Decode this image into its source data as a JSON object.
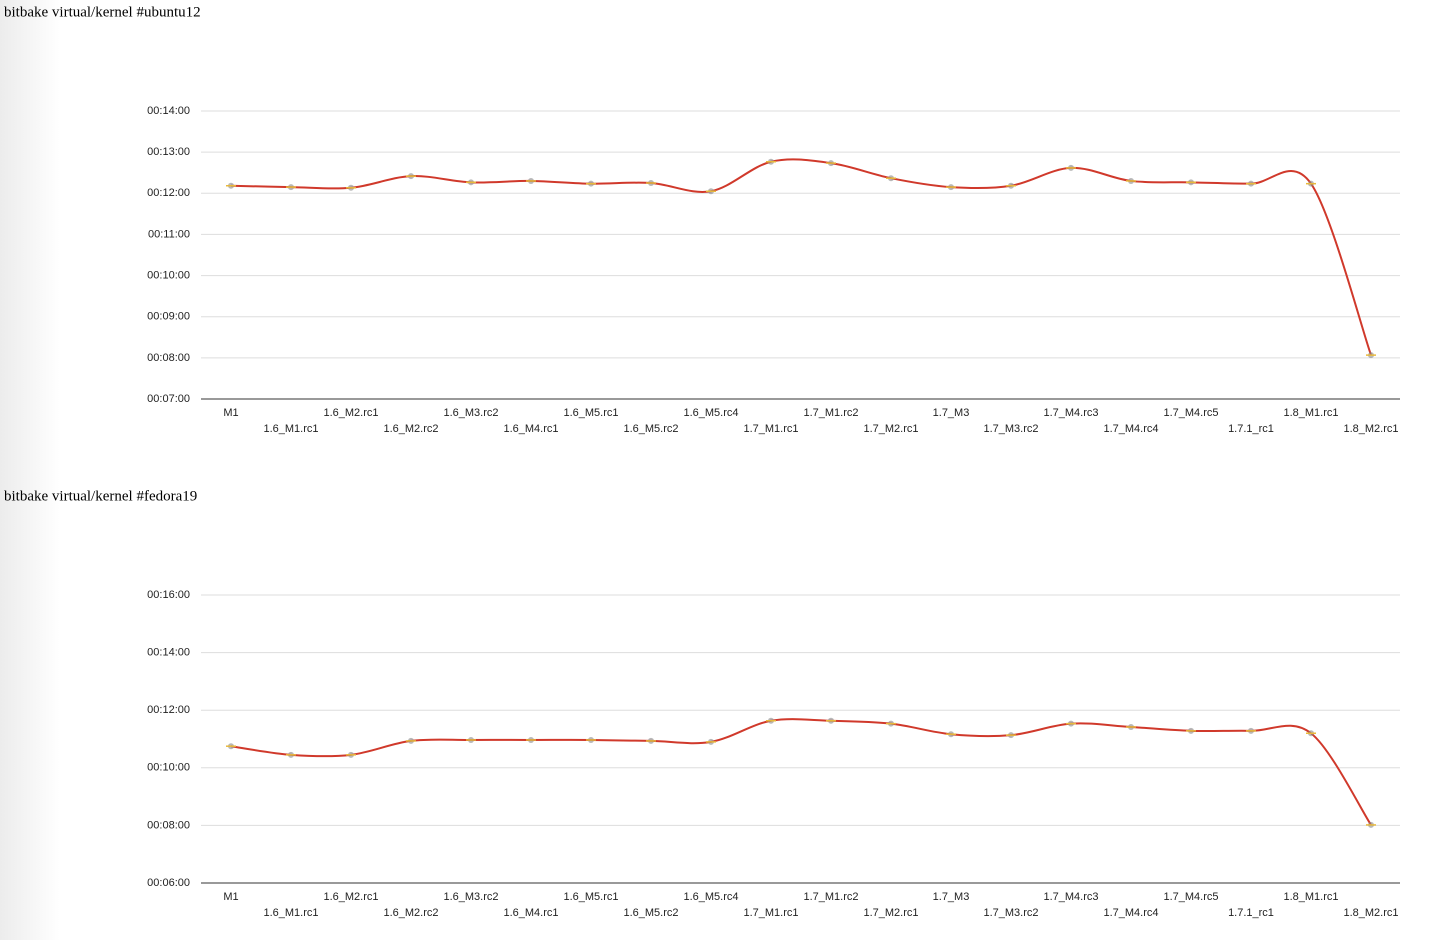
{
  "chart_data": [
    {
      "type": "line",
      "title": "bitbake virtual/kernel #ubuntu12",
      "categories": [
        "M1",
        "1.6_M1.rc1",
        "1.6_M2.rc1",
        "1.6_M2.rc2",
        "1.6_M3.rc2",
        "1.6_M4.rc1",
        "1.6_M5.rc1",
        "1.6_M5.rc2",
        "1.6_M5.rc4",
        "1.7_M1.rc1",
        "1.7_M1.rc2",
        "1.7_M2.rc1",
        "1.7_M3",
        "1.7_M3.rc2",
        "1.7_M4.rc3",
        "1.7_M4.rc4",
        "1.7_M4.rc5",
        "1.7.1_rc1",
        "1.8_M1.rc1",
        "1.8_M2.rc1"
      ],
      "values": [
        731,
        729,
        728,
        745,
        736,
        738,
        734,
        735,
        723,
        766,
        764,
        742,
        729,
        731,
        757,
        738,
        736,
        734,
        734,
        484
      ],
      "color": "#d0392b",
      "ylim": [
        420,
        840
      ],
      "yticks": [
        {
          "value": 420,
          "label": "00:07:00"
        },
        {
          "value": 480,
          "label": "00:08:00"
        },
        {
          "value": 540,
          "label": "00:09:00"
        },
        {
          "value": 600,
          "label": "00:10:00"
        },
        {
          "value": 660,
          "label": "00:11:00"
        },
        {
          "value": 720,
          "label": "00:12:00"
        },
        {
          "value": 780,
          "label": "00:13:00"
        },
        {
          "value": 840,
          "label": "00:14:00"
        }
      ],
      "grid": true
    },
    {
      "type": "line",
      "title": "bitbake virtual/kernel #fedora19",
      "categories": [
        "M1",
        "1.6_M1.rc1",
        "1.6_M2.rc1",
        "1.6_M2.rc2",
        "1.6_M3.rc2",
        "1.6_M4.rc1",
        "1.6_M5.rc1",
        "1.6_M5.rc2",
        "1.6_M5.rc4",
        "1.7_M1.rc1",
        "1.7_M1.rc2",
        "1.7_M2.rc1",
        "1.7_M3",
        "1.7_M3.rc2",
        "1.7_M4.rc3",
        "1.7_M4.rc4",
        "1.7_M4.rc5",
        "1.7.1_rc1",
        "1.8_M1.rc1",
        "1.8_M2.rc1"
      ],
      "values": [
        645,
        627,
        627,
        656,
        658,
        658,
        658,
        656,
        654,
        698,
        698,
        692,
        670,
        668,
        692,
        685,
        677,
        677,
        672,
        481
      ],
      "color": "#d0392b",
      "ylim": [
        360,
        960
      ],
      "yticks": [
        {
          "value": 360,
          "label": "00:06:00"
        },
        {
          "value": 480,
          "label": "00:08:00"
        },
        {
          "value": 600,
          "label": "00:10:00"
        },
        {
          "value": 720,
          "label": "00:12:00"
        },
        {
          "value": 840,
          "label": "00:14:00"
        },
        {
          "value": 960,
          "label": "00:16:00"
        }
      ],
      "grid": true
    }
  ]
}
